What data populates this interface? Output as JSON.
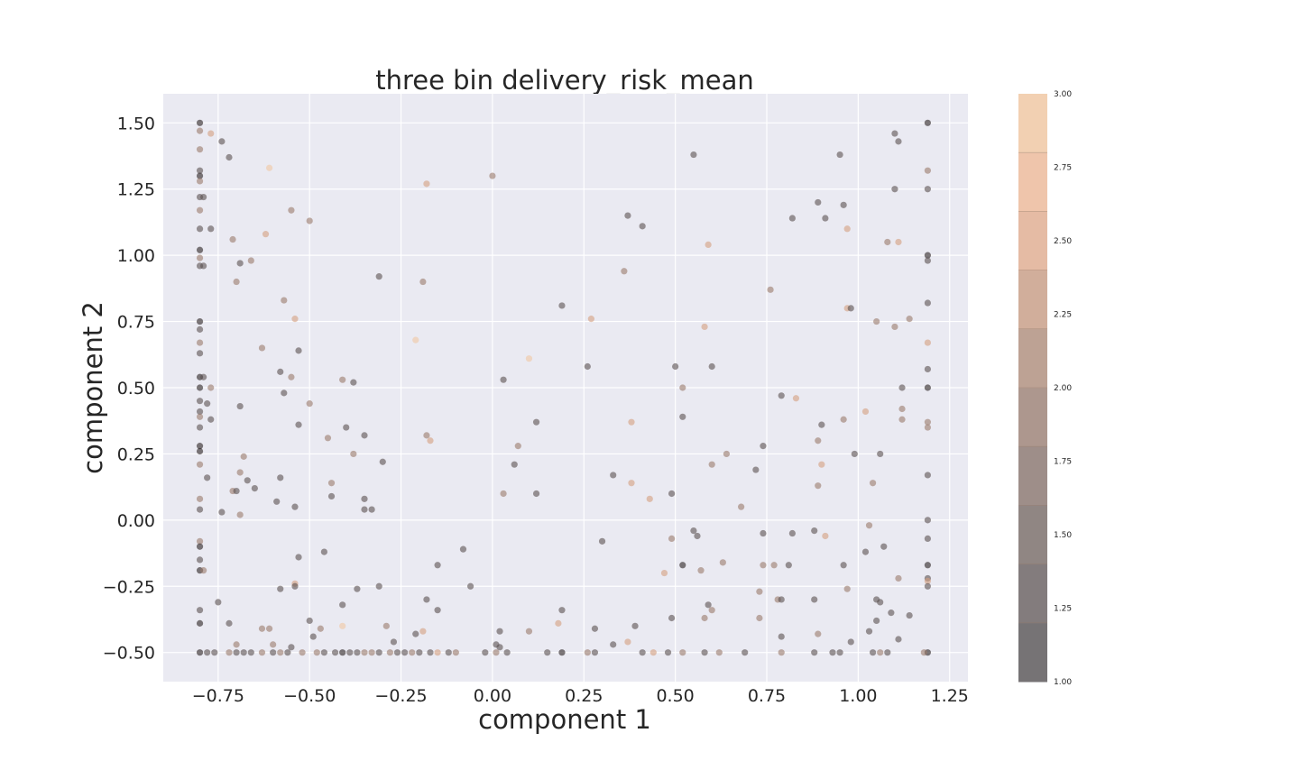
{
  "chart_data": {
    "type": "scatter",
    "title": "three bin delivery_risk_mean",
    "xlabel": "component 1",
    "ylabel": "component 2",
    "xlim": [
      -0.9,
      1.3
    ],
    "ylim": [
      -0.61,
      1.61
    ],
    "xticks": [
      -0.75,
      -0.5,
      -0.25,
      0.0,
      0.25,
      0.5,
      0.75,
      1.0,
      1.25
    ],
    "xtick_labels": [
      "−0.75",
      "−0.50",
      "−0.25",
      "0.00",
      "0.25",
      "0.50",
      "0.75",
      "1.00",
      "1.25"
    ],
    "yticks": [
      -0.5,
      -0.25,
      0.0,
      0.25,
      0.5,
      0.75,
      1.0,
      1.25,
      1.5
    ],
    "ytick_labels": [
      "−0.50",
      "−0.25",
      "0.00",
      "0.25",
      "0.50",
      "0.75",
      "1.00",
      "1.25",
      "1.50"
    ],
    "grid": true,
    "colorbar": {
      "range": [
        1.0,
        3.0
      ],
      "ticks": [
        1.0,
        1.25,
        1.5,
        1.75,
        2.0,
        2.25,
        2.5,
        2.75,
        3.0
      ],
      "tick_labels": [
        "1.00",
        "1.25",
        "1.50",
        "1.75",
        "2.00",
        "2.25",
        "2.50",
        "2.75",
        "3.00"
      ],
      "colors": [
        "#6f6e71",
        "#7c7879",
        "#898180",
        "#978a86",
        "#a5928b",
        "#b49c91",
        "#c6a797",
        "#dcb49f",
        "#edc1a8",
        "#f1c9ad",
        "#f3d6b6"
      ]
    },
    "points": [
      [
        -0.8,
        1.5,
        1.0
      ],
      [
        -0.8,
        1.47,
        2.0
      ],
      [
        -0.8,
        1.4,
        2.0
      ],
      [
        -0.8,
        1.32,
        1.5
      ],
      [
        -0.8,
        1.3,
        1.0
      ],
      [
        -0.8,
        1.28,
        2.0
      ],
      [
        -0.8,
        1.22,
        1.5
      ],
      [
        -0.8,
        1.17,
        2.0
      ],
      [
        -0.8,
        1.1,
        1.5
      ],
      [
        -0.8,
        1.02,
        1.0
      ],
      [
        -0.8,
        0.99,
        2.0
      ],
      [
        -0.8,
        0.96,
        1.5
      ],
      [
        -0.8,
        0.75,
        1.0
      ],
      [
        -0.8,
        0.72,
        1.5
      ],
      [
        -0.8,
        0.67,
        2.0
      ],
      [
        -0.8,
        0.63,
        1.5
      ],
      [
        -0.8,
        0.54,
        1.0
      ],
      [
        -0.8,
        0.5,
        1.0
      ],
      [
        -0.8,
        0.45,
        1.5
      ],
      [
        -0.8,
        0.41,
        1.5
      ],
      [
        -0.8,
        0.39,
        2.0
      ],
      [
        -0.8,
        0.35,
        1.5
      ],
      [
        -0.8,
        0.28,
        1.0
      ],
      [
        -0.8,
        0.26,
        1.0
      ],
      [
        -0.8,
        0.21,
        2.0
      ],
      [
        -0.8,
        0.08,
        2.0
      ],
      [
        -0.8,
        0.04,
        1.5
      ],
      [
        -0.8,
        -0.08,
        2.0
      ],
      [
        -0.8,
        -0.1,
        1.0
      ],
      [
        -0.8,
        -0.15,
        1.5
      ],
      [
        -0.8,
        -0.19,
        1.0
      ],
      [
        -0.8,
        -0.34,
        1.5
      ],
      [
        -0.8,
        -0.39,
        1.0
      ],
      [
        -0.8,
        -0.5,
        1.0
      ],
      [
        -0.79,
        1.22,
        1.5
      ],
      [
        -0.79,
        0.96,
        1.5
      ],
      [
        -0.79,
        0.54,
        1.5
      ],
      [
        -0.78,
        0.44,
        1.5
      ],
      [
        -0.79,
        -0.19,
        2.0
      ],
      [
        -0.77,
        1.46,
        2.5
      ],
      [
        -0.74,
        1.43,
        1.5
      ],
      [
        -0.72,
        1.37,
        1.5
      ],
      [
        -0.77,
        1.1,
        1.5
      ],
      [
        -0.71,
        1.06,
        2.0
      ],
      [
        -0.7,
        0.9,
        2.0
      ],
      [
        -0.69,
        0.97,
        1.5
      ],
      [
        -0.66,
        0.98,
        2.0
      ],
      [
        -0.61,
        1.33,
        3.0
      ],
      [
        -0.62,
        1.08,
        2.5
      ],
      [
        -0.55,
        1.17,
        2.0
      ],
      [
        -0.5,
        1.13,
        2.0
      ],
      [
        -0.57,
        0.83,
        2.0
      ],
      [
        -0.54,
        0.76,
        2.5
      ],
      [
        -0.77,
        0.5,
        2.0
      ],
      [
        -0.77,
        0.38,
        1.5
      ],
      [
        -0.69,
        0.43,
        1.5
      ],
      [
        -0.63,
        0.65,
        2.0
      ],
      [
        -0.58,
        0.56,
        1.5
      ],
      [
        -0.55,
        0.54,
        2.0
      ],
      [
        -0.57,
        0.48,
        1.5
      ],
      [
        -0.5,
        0.44,
        2.0
      ],
      [
        -0.53,
        0.64,
        1.5
      ],
      [
        -0.53,
        0.36,
        1.5
      ],
      [
        -0.78,
        0.16,
        1.5
      ],
      [
        -0.71,
        0.11,
        2.0
      ],
      [
        -0.7,
        0.11,
        1.5
      ],
      [
        -0.68,
        0.24,
        2.0
      ],
      [
        -0.69,
        0.18,
        2.0
      ],
      [
        -0.67,
        0.15,
        1.5
      ],
      [
        -0.65,
        0.12,
        1.5
      ],
      [
        -0.74,
        0.03,
        1.5
      ],
      [
        -0.69,
        0.02,
        2.0
      ],
      [
        -0.59,
        0.07,
        1.5
      ],
      [
        -0.58,
        0.16,
        1.5
      ],
      [
        -0.54,
        0.05,
        1.5
      ],
      [
        -0.75,
        -0.31,
        1.5
      ],
      [
        -0.72,
        -0.39,
        1.5
      ],
      [
        -0.7,
        -0.47,
        2.0
      ],
      [
        -0.63,
        -0.41,
        2.0
      ],
      [
        -0.61,
        -0.41,
        2.0
      ],
      [
        -0.58,
        -0.26,
        1.5
      ],
      [
        -0.54,
        -0.24,
        2.5
      ],
      [
        -0.54,
        -0.25,
        1.5
      ],
      [
        -0.53,
        -0.14,
        1.5
      ],
      [
        -0.6,
        -0.47,
        2.0
      ],
      [
        -0.55,
        -0.48,
        1.5
      ],
      [
        -0.5,
        -0.38,
        1.5
      ],
      [
        -0.49,
        -0.44,
        1.5
      ],
      [
        -0.47,
        -0.41,
        2.0
      ],
      [
        -0.46,
        -0.12,
        1.5
      ],
      [
        -0.45,
        0.31,
        2.0
      ],
      [
        -0.44,
        0.14,
        2.0
      ],
      [
        -0.44,
        0.09,
        1.5
      ],
      [
        -0.41,
        0.53,
        2.0
      ],
      [
        -0.38,
        0.52,
        1.5
      ],
      [
        -0.4,
        0.35,
        1.5
      ],
      [
        -0.38,
        0.25,
        2.0
      ],
      [
        -0.35,
        0.32,
        1.5
      ],
      [
        -0.35,
        0.08,
        1.5
      ],
      [
        -0.35,
        0.04,
        1.5
      ],
      [
        -0.33,
        0.04,
        1.5
      ],
      [
        -0.31,
        0.92,
        1.5
      ],
      [
        -0.3,
        0.22,
        1.5
      ],
      [
        -0.41,
        -0.32,
        1.5
      ],
      [
        -0.37,
        -0.26,
        1.5
      ],
      [
        -0.41,
        -0.4,
        3.0
      ],
      [
        -0.31,
        -0.25,
        1.5
      ],
      [
        -0.29,
        -0.4,
        2.0
      ],
      [
        -0.27,
        -0.46,
        1.5
      ],
      [
        -0.21,
        -0.43,
        1.5
      ],
      [
        -0.19,
        -0.42,
        2.5
      ],
      [
        -0.18,
        -0.3,
        1.5
      ],
      [
        -0.15,
        -0.34,
        1.5
      ],
      [
        -0.15,
        -0.17,
        1.5
      ],
      [
        -0.08,
        -0.11,
        1.5
      ],
      [
        -0.06,
        -0.25,
        1.5
      ],
      [
        -0.18,
        1.27,
        2.5
      ],
      [
        -0.19,
        0.9,
        2.0
      ],
      [
        -0.21,
        0.68,
        3.0
      ],
      [
        -0.18,
        0.32,
        2.0
      ],
      [
        -0.17,
        0.3,
        2.5
      ],
      [
        0.0,
        1.3,
        2.0
      ],
      [
        0.03,
        0.53,
        1.5
      ],
      [
        0.06,
        0.21,
        1.5
      ],
      [
        0.07,
        0.28,
        2.0
      ],
      [
        0.03,
        0.1,
        2.0
      ],
      [
        0.1,
        0.61,
        3.0
      ],
      [
        0.12,
        0.37,
        1.5
      ],
      [
        0.12,
        0.1,
        1.5
      ],
      [
        0.19,
        0.81,
        1.5
      ],
      [
        0.27,
        0.76,
        2.5
      ],
      [
        0.26,
        0.58,
        1.5
      ],
      [
        0.3,
        -0.08,
        1.5
      ],
      [
        0.02,
        -0.42,
        1.5
      ],
      [
        0.01,
        -0.47,
        1.5
      ],
      [
        0.02,
        -0.48,
        1.5
      ],
      [
        0.1,
        -0.42,
        2.0
      ],
      [
        0.18,
        -0.39,
        2.5
      ],
      [
        0.19,
        -0.34,
        1.5
      ],
      [
        0.28,
        -0.41,
        1.5
      ],
      [
        0.33,
        -0.47,
        1.5
      ],
      [
        0.33,
        0.17,
        1.5
      ],
      [
        0.36,
        0.94,
        2.0
      ],
      [
        0.37,
        1.15,
        1.5
      ],
      [
        0.41,
        1.11,
        1.5
      ],
      [
        0.38,
        0.37,
        2.5
      ],
      [
        0.38,
        0.14,
        2.5
      ],
      [
        0.43,
        0.08,
        2.5
      ],
      [
        0.37,
        -0.46,
        2.5
      ],
      [
        0.39,
        -0.4,
        1.5
      ],
      [
        0.47,
        -0.2,
        2.5
      ],
      [
        0.49,
        -0.07,
        2.0
      ],
      [
        0.49,
        -0.37,
        1.5
      ],
      [
        0.49,
        0.1,
        1.5
      ],
      [
        0.5,
        0.58,
        1.5
      ],
      [
        0.52,
        0.5,
        2.0
      ],
      [
        0.52,
        0.39,
        1.5
      ],
      [
        0.52,
        -0.17,
        1.0
      ],
      [
        0.55,
        1.38,
        1.5
      ],
      [
        0.58,
        0.73,
        2.5
      ],
      [
        0.59,
        1.04,
        2.5
      ],
      [
        0.6,
        0.58,
        1.5
      ],
      [
        0.6,
        0.21,
        2.0
      ],
      [
        0.64,
        0.25,
        2.0
      ],
      [
        0.55,
        -0.04,
        1.5
      ],
      [
        0.56,
        -0.06,
        1.5
      ],
      [
        0.57,
        -0.19,
        2.0
      ],
      [
        0.58,
        -0.37,
        2.0
      ],
      [
        0.59,
        -0.32,
        1.5
      ],
      [
        0.6,
        -0.34,
        2.0
      ],
      [
        0.63,
        -0.16,
        2.0
      ],
      [
        0.68,
        0.05,
        2.0
      ],
      [
        0.72,
        0.19,
        1.5
      ],
      [
        0.74,
        0.28,
        1.5
      ],
      [
        0.74,
        -0.05,
        1.5
      ],
      [
        0.74,
        -0.17,
        2.0
      ],
      [
        0.73,
        -0.27,
        2.0
      ],
      [
        0.73,
        -0.37,
        2.0
      ],
      [
        0.76,
        0.87,
        2.0
      ],
      [
        0.77,
        -0.17,
        2.0
      ],
      [
        0.78,
        -0.3,
        2.0
      ],
      [
        0.79,
        -0.3,
        1.5
      ],
      [
        0.79,
        0.47,
        1.5
      ],
      [
        0.79,
        -0.44,
        1.5
      ],
      [
        0.81,
        -0.17,
        1.5
      ],
      [
        0.82,
        1.14,
        1.5
      ],
      [
        0.82,
        -0.05,
        1.5
      ],
      [
        0.83,
        0.46,
        2.5
      ],
      [
        0.88,
        -0.04,
        1.5
      ],
      [
        0.88,
        -0.3,
        1.5
      ],
      [
        0.89,
        1.2,
        1.5
      ],
      [
        0.89,
        0.3,
        2.0
      ],
      [
        0.89,
        0.13,
        2.0
      ],
      [
        0.89,
        -0.43,
        2.0
      ],
      [
        0.9,
        0.36,
        1.5
      ],
      [
        0.9,
        0.21,
        2.5
      ],
      [
        0.91,
        1.14,
        1.5
      ],
      [
        0.91,
        -0.06,
        2.5
      ],
      [
        0.95,
        1.38,
        1.5
      ],
      [
        0.96,
        1.19,
        1.5
      ],
      [
        0.97,
        1.1,
        2.5
      ],
      [
        0.97,
        0.8,
        2.5
      ],
      [
        0.98,
        0.8,
        1.5
      ],
      [
        0.96,
        0.38,
        2.0
      ],
      [
        0.96,
        -0.17,
        1.5
      ],
      [
        0.97,
        -0.26,
        2.0
      ],
      [
        0.99,
        0.25,
        1.5
      ],
      [
        0.98,
        -0.46,
        1.5
      ],
      [
        1.02,
        0.41,
        2.5
      ],
      [
        1.02,
        -0.12,
        1.5
      ],
      [
        1.03,
        -0.02,
        2.0
      ],
      [
        1.04,
        0.14,
        2.0
      ],
      [
        1.03,
        -0.42,
        1.5
      ],
      [
        1.05,
        0.75,
        2.0
      ],
      [
        1.05,
        -0.3,
        1.5
      ],
      [
        1.06,
        -0.31,
        1.5
      ],
      [
        1.06,
        0.25,
        1.5
      ],
      [
        1.05,
        -0.38,
        1.5
      ],
      [
        1.07,
        -0.1,
        1.5
      ],
      [
        1.08,
        1.05,
        2.0
      ],
      [
        1.1,
        0.73,
        2.0
      ],
      [
        1.1,
        1.46,
        1.5
      ],
      [
        1.1,
        1.25,
        1.5
      ],
      [
        1.11,
        1.05,
        2.5
      ],
      [
        1.11,
        1.43,
        1.5
      ],
      [
        1.09,
        -0.35,
        1.5
      ],
      [
        1.11,
        -0.22,
        2.0
      ],
      [
        1.11,
        -0.45,
        1.5
      ],
      [
        1.12,
        0.5,
        1.5
      ],
      [
        1.12,
        0.42,
        2.0
      ],
      [
        1.12,
        0.38,
        2.0
      ],
      [
        1.14,
        0.76,
        2.0
      ],
      [
        1.14,
        -0.36,
        1.5
      ],
      [
        1.19,
        1.5,
        1.0
      ],
      [
        1.19,
        1.32,
        2.0
      ],
      [
        1.19,
        1.25,
        1.5
      ],
      [
        1.19,
        1.0,
        1.0
      ],
      [
        1.19,
        0.98,
        1.5
      ],
      [
        1.19,
        0.82,
        1.5
      ],
      [
        1.19,
        0.67,
        2.5
      ],
      [
        1.19,
        0.57,
        1.5
      ],
      [
        1.19,
        0.5,
        1.0
      ],
      [
        1.19,
        0.37,
        2.0
      ],
      [
        1.19,
        0.35,
        2.0
      ],
      [
        1.19,
        0.17,
        1.5
      ],
      [
        1.19,
        0.0,
        1.5
      ],
      [
        1.19,
        -0.07,
        1.5
      ],
      [
        1.19,
        -0.17,
        1.0
      ],
      [
        1.19,
        -0.22,
        1.5
      ],
      [
        1.19,
        -0.23,
        2.5
      ],
      [
        1.19,
        -0.25,
        1.5
      ],
      [
        1.19,
        -0.5,
        1.0
      ],
      [
        -0.78,
        -0.5,
        1.5
      ],
      [
        -0.76,
        -0.5,
        1.5
      ],
      [
        -0.72,
        -0.5,
        2.0
      ],
      [
        -0.7,
        -0.5,
        1.5
      ],
      [
        -0.68,
        -0.5,
        1.5
      ],
      [
        -0.66,
        -0.5,
        1.5
      ],
      [
        -0.63,
        -0.5,
        2.0
      ],
      [
        -0.6,
        -0.5,
        1.5
      ],
      [
        -0.58,
        -0.5,
        2.0
      ],
      [
        -0.56,
        -0.5,
        1.5
      ],
      [
        -0.52,
        -0.5,
        2.0
      ],
      [
        -0.48,
        -0.5,
        2.0
      ],
      [
        -0.46,
        -0.5,
        1.5
      ],
      [
        -0.43,
        -0.5,
        1.5
      ],
      [
        -0.41,
        -0.5,
        1.0
      ],
      [
        -0.39,
        -0.5,
        1.5
      ],
      [
        -0.37,
        -0.5,
        1.5
      ],
      [
        -0.35,
        -0.5,
        2.0
      ],
      [
        -0.33,
        -0.5,
        2.0
      ],
      [
        -0.31,
        -0.5,
        1.5
      ],
      [
        -0.28,
        -0.5,
        2.0
      ],
      [
        -0.26,
        -0.5,
        1.5
      ],
      [
        -0.24,
        -0.5,
        1.5
      ],
      [
        -0.22,
        -0.5,
        2.0
      ],
      [
        -0.2,
        -0.5,
        1.5
      ],
      [
        -0.17,
        -0.5,
        1.5
      ],
      [
        -0.15,
        -0.5,
        2.5
      ],
      [
        -0.12,
        -0.5,
        1.5
      ],
      [
        -0.1,
        -0.5,
        2.0
      ],
      [
        -0.02,
        -0.5,
        1.5
      ],
      [
        0.01,
        -0.5,
        2.0
      ],
      [
        0.04,
        -0.5,
        1.5
      ],
      [
        0.15,
        -0.5,
        1.5
      ],
      [
        0.19,
        -0.5,
        1.0
      ],
      [
        0.26,
        -0.5,
        2.0
      ],
      [
        0.28,
        -0.5,
        1.5
      ],
      [
        0.41,
        -0.5,
        1.5
      ],
      [
        0.44,
        -0.5,
        2.5
      ],
      [
        0.48,
        -0.5,
        1.5
      ],
      [
        0.52,
        -0.5,
        2.0
      ],
      [
        0.58,
        -0.5,
        1.5
      ],
      [
        0.62,
        -0.5,
        2.0
      ],
      [
        0.69,
        -0.5,
        1.5
      ],
      [
        0.79,
        -0.5,
        2.0
      ],
      [
        0.88,
        -0.5,
        1.5
      ],
      [
        0.93,
        -0.5,
        1.5
      ],
      [
        0.95,
        -0.5,
        1.5
      ],
      [
        1.04,
        -0.5,
        1.5
      ],
      [
        1.06,
        -0.5,
        2.0
      ],
      [
        1.08,
        -0.5,
        1.5
      ],
      [
        1.18,
        -0.5,
        2.0
      ]
    ]
  }
}
